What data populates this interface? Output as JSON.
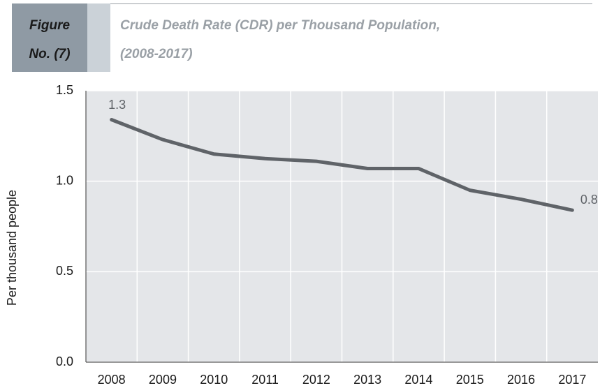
{
  "figure_label": [
    "Figure",
    "No. (7)"
  ],
  "chart_data": {
    "type": "line",
    "title": [
      "Crude Death Rate (CDR) per Thousand Population,",
      "(2008-2017)"
    ],
    "y_label": "Per thousand people",
    "categories": [
      "2008",
      "2009",
      "2010",
      "2011",
      "2012",
      "2013",
      "2014",
      "2015",
      "2016",
      "2017"
    ],
    "values": [
      1.34,
      1.23,
      1.15,
      1.125,
      1.11,
      1.07,
      1.07,
      0.95,
      0.9,
      0.84
    ],
    "value_labels": [
      "1.3",
      null,
      null,
      null,
      null,
      null,
      null,
      null,
      null,
      "0.8"
    ],
    "color": "#5f6368",
    "ylim": [
      0,
      1.5
    ],
    "yticks": [
      {
        "value": 0,
        "label": "0.0"
      },
      {
        "value": 0.5,
        "label": "0.5"
      },
      {
        "value": 1,
        "label": "1.0"
      },
      {
        "value": 1.5,
        "label": "1.5"
      }
    ],
    "grid": true
  }
}
